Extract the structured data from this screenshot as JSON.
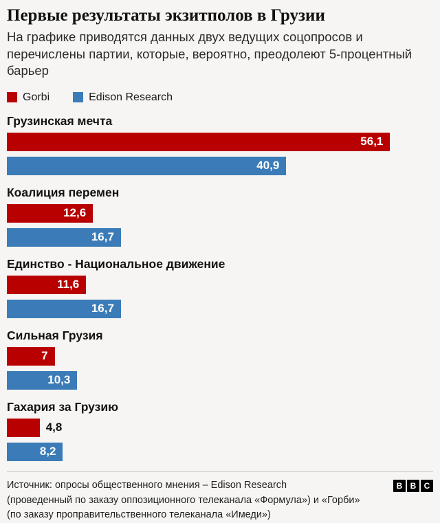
{
  "page": {
    "title": "Первые результаты экзитполов в Грузии",
    "subtitle": "На графике приводятся данных двух ведущих соцопросов и перечислены партии, которые, вероятно, преодолеют 5-процентный барьер"
  },
  "colors": {
    "gorbi_red": "#b80000",
    "edison_blue": "#3b7cb8",
    "background": "#f6f5f3"
  },
  "legend": [
    {
      "label": "Gorbi",
      "color": "#b80000"
    },
    {
      "label": "Edison Research",
      "color": "#3b7cb8"
    }
  ],
  "chart_data": {
    "type": "bar",
    "orientation": "horizontal",
    "title": "Первые результаты экзитполов в Грузии",
    "xlabel": "",
    "ylabel": "",
    "xlim": [
      0,
      62.4
    ],
    "grid": false,
    "legend_position": "top-left",
    "categories": [
      "Грузинская мечта",
      "Коалиция перемен",
      "Единство - Национальное движение",
      "Сильная Грузия",
      "Гахария за Грузию"
    ],
    "series": [
      {
        "name": "Gorbi",
        "color": "#b80000",
        "values": [
          56.1,
          12.6,
          11.6,
          7,
          4.8
        ],
        "labels": [
          "56,1",
          "12,6",
          "11,6",
          "7",
          "4,8"
        ]
      },
      {
        "name": "Edison Research",
        "color": "#3b7cb8",
        "values": [
          40.9,
          16.7,
          16.7,
          10.3,
          8.2
        ],
        "labels": [
          "40,9",
          "16,7",
          "16,7",
          "10,3",
          "8,2"
        ]
      }
    ],
    "value_label_inside_threshold": 6
  },
  "footer": {
    "lines": [
      "Источник: опросы общественного мнения – Edison Research",
      "(проведенный по заказу оппозиционного телеканала «Формула») и «Горби»",
      "(по заказу проправительственного телеканала «Имеди»)"
    ],
    "logo_letters": [
      "B",
      "B",
      "C"
    ]
  }
}
